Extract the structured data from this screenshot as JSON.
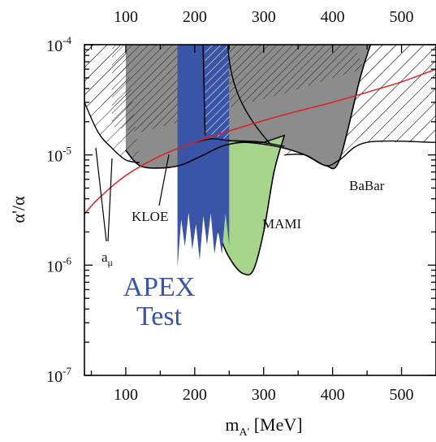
{
  "chart_data": {
    "type": "area",
    "x_scale": "linear",
    "y_scale": "log",
    "xlim": [
      40,
      550
    ],
    "ylim": [
      1e-07,
      0.0001
    ],
    "x_ticks": [
      100,
      200,
      300,
      400,
      500
    ],
    "x_tick_labels": [
      "100",
      "200",
      "300",
      "400",
      "500"
    ],
    "y_ticks": [
      1e-07,
      1e-06,
      1e-05,
      0.0001
    ],
    "y_tick_labels": [
      {
        "base": "10",
        "exp": "-7"
      },
      {
        "base": "10",
        "exp": "-6"
      },
      {
        "base": "10",
        "exp": "-5"
      },
      {
        "base": "10",
        "exp": "-4"
      }
    ],
    "xlabel": {
      "main": "m",
      "sub": "A'",
      "unit": " [MeV]"
    },
    "ylabel": "α'/α",
    "annotations": {
      "babar": "BaBar",
      "kloe": "KLOE",
      "mami": "MAMI",
      "amu": {
        "main": "a",
        "sub": "μ"
      },
      "apex_line1": "APEX",
      "apex_line2": "Test"
    },
    "colors": {
      "excluded_gray": "#8c8c8c",
      "dark_hatch": "#6e6e6e",
      "mami_green": "#a8d58c",
      "apex_blue": "#3a55a8",
      "amu_band_red": "#e02020"
    },
    "series": [
      {
        "name": "KLOE",
        "boundary": [
          [
            100,
            1.1e-05
          ],
          [
            120,
            8e-06
          ],
          [
            150,
            7.6e-06
          ],
          [
            180,
            8.1e-06
          ],
          [
            210,
            9.8e-06
          ],
          [
            240,
            1.2e-05
          ],
          [
            270,
            1.3e-05
          ],
          [
            300,
            1.25e-05
          ],
          [
            330,
            1.15e-05
          ],
          [
            360,
            1e-05
          ],
          [
            390,
            8e-06
          ],
          [
            410,
            9e-06
          ],
          [
            440,
            5e-05
          ],
          [
            455,
            0.0001
          ]
        ]
      },
      {
        "name": "MAMI",
        "boundary": [
          [
            200,
            1.3e-05
          ],
          [
            220,
            4e-06
          ],
          [
            240,
            1.6e-06
          ],
          [
            255,
            1.05e-06
          ],
          [
            270,
            8.4e-07
          ],
          [
            285,
            9e-07
          ],
          [
            300,
            2e-06
          ],
          [
            315,
            7e-06
          ],
          [
            330,
            1.5e-05
          ]
        ]
      },
      {
        "name": "BaBar",
        "boundary": [
          [
            330,
            1e-05
          ],
          [
            360,
            1e-05
          ],
          [
            390,
            8e-06
          ],
          [
            410,
            9e-06
          ],
          [
            450,
            1.3e-05
          ],
          [
            550,
            1.3e-05
          ]
        ]
      },
      {
        "name": "a_mu",
        "boundary": [
          [
            40,
            3e-05
          ],
          [
            60,
            1.6e-05
          ],
          [
            80,
            1.15e-05
          ],
          [
            100,
            9e-06
          ],
          [
            120,
            8.5e-06
          ]
        ]
      },
      {
        "name": "APEX Test",
        "x_range": [
          175,
          250
        ],
        "y_min": 9.5e-07
      },
      {
        "name": "a_mu band",
        "x": [
          40,
          60,
          100,
          150,
          200,
          250,
          300,
          350,
          400,
          450,
          500,
          550
        ],
        "y": [
          2.9e-06,
          4e-06,
          6.5e-06,
          9.8e-06,
          1.3e-05,
          1.65e-05,
          2.05e-05,
          2.5e-05,
          3e-05,
          3.7e-05,
          4.6e-05,
          6e-05
        ]
      }
    ]
  }
}
